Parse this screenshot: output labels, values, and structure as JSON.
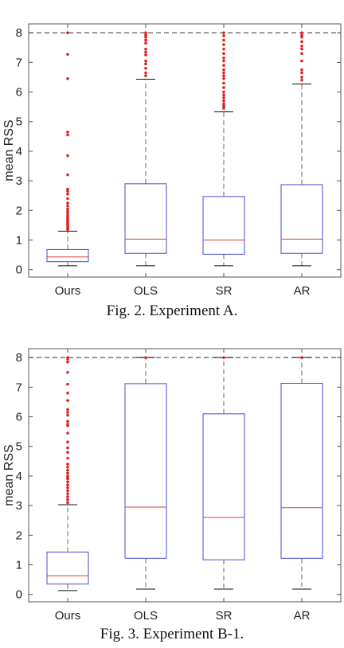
{
  "chart_data": [
    {
      "type": "box",
      "caption": "Fig. 2.  Experiment A.",
      "ylabel": "mean RSS",
      "ylim": [
        -0.25,
        8.3
      ],
      "yticks": [
        0,
        1,
        2,
        3,
        4,
        5,
        6,
        7,
        8
      ],
      "reference_line": 8,
      "grid": false,
      "colors": {
        "box": "#4a4ad6",
        "median": "#e03a3a",
        "outlier": "#e02020",
        "whisker": "#666666"
      },
      "categories": [
        "Ours",
        "OLS",
        "SR",
        "AR"
      ],
      "boxes": [
        {
          "name": "Ours",
          "whisker_low": 0.13,
          "q1": 0.27,
          "median": 0.43,
          "q3": 0.68,
          "whisker_high": 1.3,
          "outliers": [
            1.35,
            1.4,
            1.45,
            1.5,
            1.55,
            1.6,
            1.65,
            1.7,
            1.75,
            1.82,
            1.9,
            1.97,
            2.05,
            2.15,
            2.25,
            2.4,
            2.55,
            2.65,
            2.72,
            3.2,
            3.85,
            4.55,
            4.65,
            6.45,
            7.27,
            8.0
          ]
        },
        {
          "name": "OLS",
          "whisker_low": 0.13,
          "q1": 0.55,
          "median": 1.03,
          "q3": 2.9,
          "whisker_high": 6.43,
          "outliers": [
            6.55,
            6.65,
            6.8,
            6.95,
            7.05,
            7.25,
            7.35,
            7.45,
            7.65,
            7.75,
            7.85,
            7.92,
            8.0
          ]
        },
        {
          "name": "SR",
          "whisker_low": 0.13,
          "q1": 0.52,
          "median": 1.0,
          "q3": 2.47,
          "whisker_high": 5.33,
          "outliers": [
            5.45,
            5.5,
            5.55,
            5.6,
            5.7,
            5.8,
            5.9,
            6.0,
            6.15,
            6.3,
            6.45,
            6.55,
            6.65,
            6.75,
            6.9,
            7.05,
            7.15,
            7.3,
            7.45,
            7.6,
            7.75,
            7.9,
            8.0
          ]
        },
        {
          "name": "AR",
          "whisker_low": 0.13,
          "q1": 0.55,
          "median": 1.03,
          "q3": 2.87,
          "whisker_high": 6.27,
          "outliers": [
            6.4,
            6.5,
            6.65,
            6.75,
            7.05,
            7.3,
            7.45,
            7.55,
            7.7,
            7.85,
            7.92,
            8.0
          ]
        }
      ]
    },
    {
      "type": "box",
      "caption": "Fig. 3.  Experiment B-1.",
      "ylabel": "mean RSS",
      "ylim": [
        -0.25,
        8.3
      ],
      "yticks": [
        0,
        1,
        2,
        3,
        4,
        5,
        6,
        7,
        8
      ],
      "reference_line": 8,
      "grid": false,
      "colors": {
        "box": "#4a4ad6",
        "median": "#e03a3a",
        "outlier": "#e02020",
        "whisker": "#666666"
      },
      "categories": [
        "Ours",
        "OLS",
        "SR",
        "AR"
      ],
      "boxes": [
        {
          "name": "Ours",
          "whisker_low": 0.13,
          "q1": 0.35,
          "median": 0.63,
          "q3": 1.43,
          "whisker_high": 3.03,
          "outliers": [
            3.1,
            3.2,
            3.3,
            3.4,
            3.5,
            3.6,
            3.7,
            3.8,
            3.9,
            3.95,
            4.0,
            4.1,
            4.2,
            4.3,
            4.4,
            4.6,
            4.8,
            4.95,
            5.15,
            5.45,
            5.7,
            5.75,
            5.85,
            6.05,
            6.15,
            6.25,
            6.55,
            6.8,
            7.1,
            7.5,
            7.85,
            7.95,
            8.0
          ]
        },
        {
          "name": "OLS",
          "whisker_low": 0.18,
          "q1": 1.22,
          "median": 2.95,
          "q3": 7.12,
          "whisker_high": 8.0,
          "outliers": [
            8.0
          ]
        },
        {
          "name": "SR",
          "whisker_low": 0.18,
          "q1": 1.17,
          "median": 2.6,
          "q3": 6.1,
          "whisker_high": 8.0,
          "outliers": [
            8.0
          ]
        },
        {
          "name": "AR",
          "whisker_low": 0.18,
          "q1": 1.22,
          "median": 2.93,
          "q3": 7.13,
          "whisker_high": 8.0,
          "outliers": [
            8.0
          ]
        }
      ]
    }
  ]
}
